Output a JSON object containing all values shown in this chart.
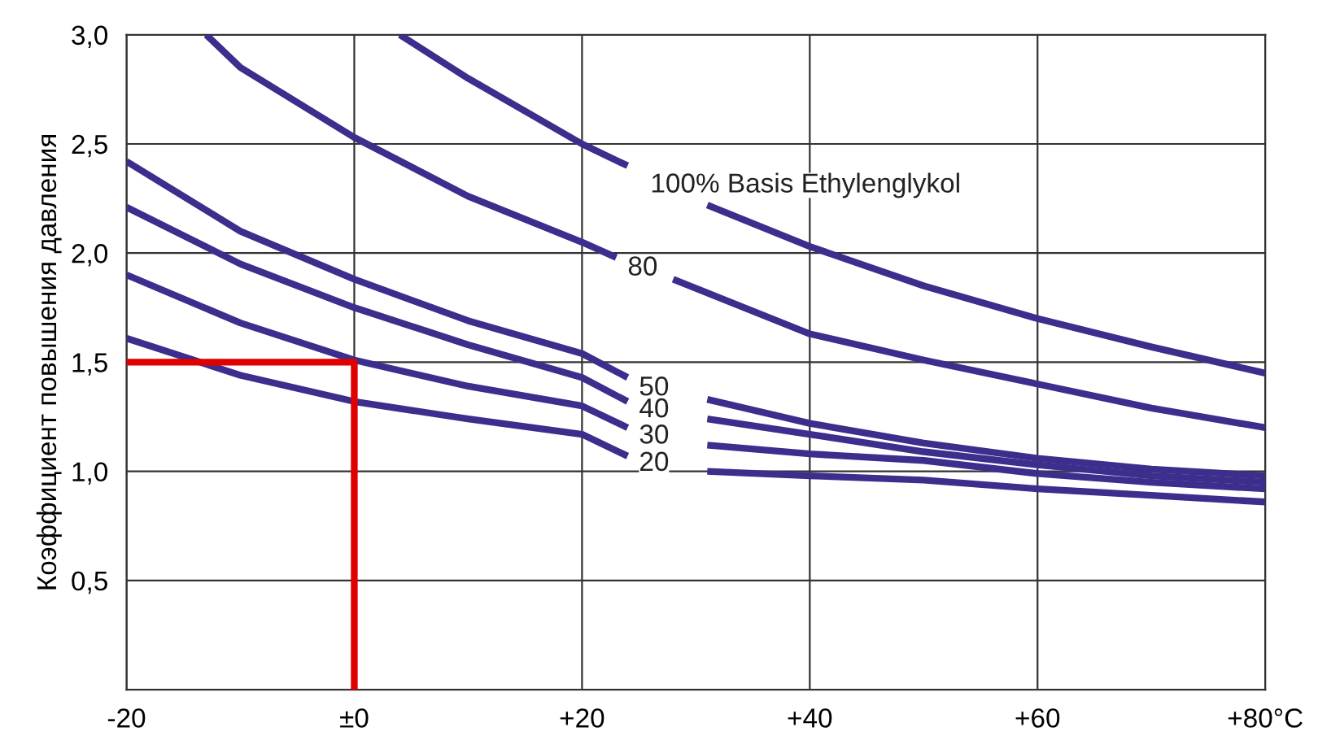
{
  "chart_data": {
    "type": "line",
    "ylabel": "Коэффициент повышения давления",
    "xlim": [
      -20,
      80
    ],
    "ylim": [
      0,
      3.0
    ],
    "xticks": [
      {
        "value": -20,
        "label": "-20"
      },
      {
        "value": 0,
        "label": "±0"
      },
      {
        "value": 20,
        "label": "+20"
      },
      {
        "value": 40,
        "label": "+40"
      },
      {
        "value": 60,
        "label": "+60"
      },
      {
        "value": 80,
        "label": "+80°C"
      }
    ],
    "yticks": [
      {
        "value": 0.5,
        "label": "0,5"
      },
      {
        "value": 1.0,
        "label": "1,0"
      },
      {
        "value": 1.5,
        "label": "1,5"
      },
      {
        "value": 2.0,
        "label": "2,0"
      },
      {
        "value": 2.5,
        "label": "2,5"
      },
      {
        "value": 3.0,
        "label": "3,0"
      }
    ],
    "grid": true,
    "legend": false,
    "line_style": "solid",
    "marker": "none",
    "series": [
      {
        "name": "100% Basis Ethylenglykol",
        "color": "#3b2e8c",
        "x": [
          4,
          10,
          20,
          24,
          26,
          31,
          40,
          50,
          60,
          70,
          80
        ],
        "values": [
          3.0,
          2.8,
          2.5,
          2.4,
          null,
          2.22,
          2.03,
          1.85,
          1.7,
          1.57,
          1.45
        ]
      },
      {
        "name": "80",
        "color": "#3b2e8c",
        "x": [
          -13,
          -10,
          0,
          10,
          20,
          23,
          24,
          28,
          40,
          50,
          60,
          70,
          80
        ],
        "values": [
          3.0,
          2.85,
          2.53,
          2.26,
          2.05,
          1.98,
          null,
          1.88,
          1.63,
          1.51,
          1.4,
          1.29,
          1.2
        ]
      },
      {
        "name": "50",
        "color": "#3b2e8c",
        "x": [
          -20,
          -10,
          0,
          10,
          20,
          24,
          25,
          31,
          40,
          50,
          60,
          70,
          80
        ],
        "values": [
          2.42,
          2.1,
          1.88,
          1.69,
          1.54,
          1.43,
          null,
          1.33,
          1.22,
          1.13,
          1.06,
          1.01,
          0.98
        ]
      },
      {
        "name": "40",
        "color": "#3b2e8c",
        "x": [
          -20,
          -10,
          0,
          10,
          20,
          24,
          25,
          31,
          40,
          50,
          60,
          70,
          80
        ],
        "values": [
          2.21,
          1.95,
          1.75,
          1.58,
          1.43,
          1.32,
          null,
          1.24,
          1.17,
          1.09,
          1.03,
          0.98,
          0.95
        ]
      },
      {
        "name": "30",
        "color": "#3b2e8c",
        "x": [
          -20,
          -10,
          0,
          10,
          20,
          24,
          25,
          31,
          40,
          50,
          60,
          70,
          80
        ],
        "values": [
          1.9,
          1.68,
          1.51,
          1.39,
          1.3,
          1.2,
          null,
          1.12,
          1.08,
          1.05,
          0.99,
          0.95,
          0.92
        ]
      },
      {
        "name": "20",
        "color": "#3b2e8c",
        "x": [
          -20,
          -10,
          0,
          10,
          20,
          24,
          25,
          31,
          40,
          50,
          60,
          70,
          80
        ],
        "values": [
          1.61,
          1.44,
          1.32,
          1.24,
          1.17,
          1.07,
          null,
          1.0,
          0.98,
          0.96,
          0.92,
          0.89,
          0.86
        ]
      },
      {
        "color": "#e00000",
        "x": [
          -20,
          0,
          0
        ],
        "values": [
          1.5,
          1.5,
          0
        ]
      }
    ]
  }
}
